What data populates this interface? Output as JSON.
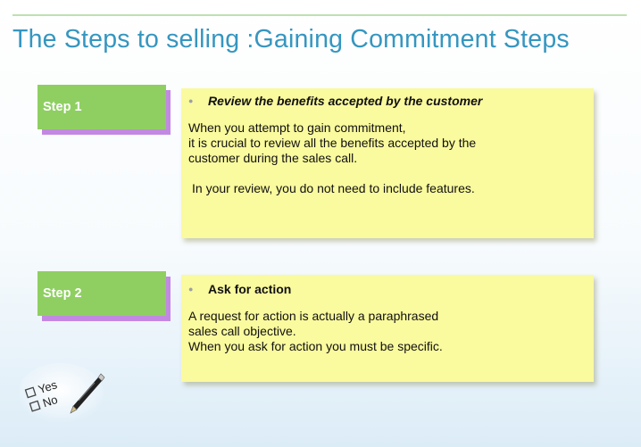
{
  "slide": {
    "title": "The Steps to selling :Gaining Commitment Steps"
  },
  "steps": [
    {
      "label": "Step 1",
      "heading": "Review the benefits accepted by the customer",
      "body_lines": [
        "When you attempt to gain commitment,",
        "it is crucial to review all the benefits accepted by the",
        "customer during the sales call."
      ],
      "extra_line": "In your review, you do not need to include features."
    },
    {
      "label": "Step 2",
      "heading": "Ask for action",
      "body_lines": [
        "A request for action is actually a paraphrased",
        "sales call objective.",
        "When you ask for action you must be specific."
      ]
    }
  ],
  "clipart": {
    "icon": "checkbox-yes-no-pen",
    "labels": [
      "Yes",
      "No"
    ]
  },
  "colors": {
    "title": "#3596c0",
    "step_tab": "#8fcf62",
    "step_shadow": "#c389e2",
    "note": "#fafa9e"
  }
}
